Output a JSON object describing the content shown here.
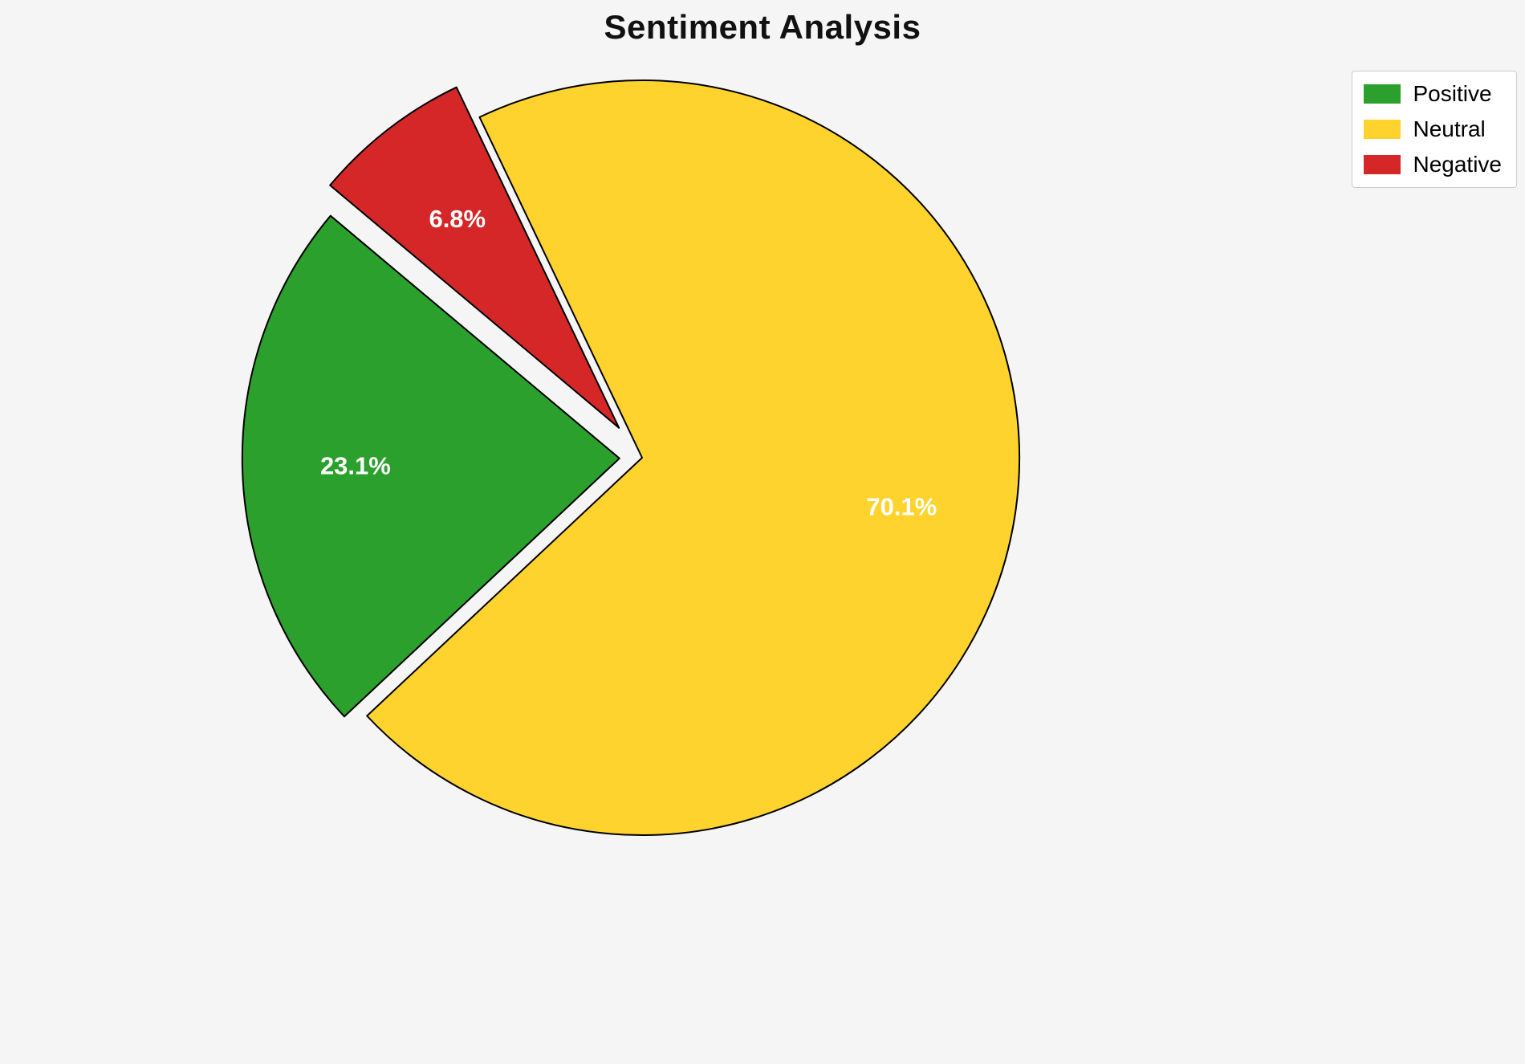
{
  "chart_data": {
    "type": "pie",
    "title": "Sentiment Analysis",
    "categories": [
      "Positive",
      "Neutral",
      "Negative"
    ],
    "values": [
      23.1,
      70.1,
      6.8
    ],
    "pct_labels": [
      "23.1%",
      "70.1%",
      "6.8%"
    ],
    "colors": [
      "#2ca02c",
      "#ffd32e",
      "#d62728"
    ],
    "explode": [
      0.06,
      0,
      0.1
    ],
    "start_angle": 140,
    "direction": "counterclockwise",
    "pct_distance": 0.7,
    "pct_label_color": "#ffffff",
    "edge_color": "#000000",
    "edge_width": 2,
    "background_color": "#f5f5f5",
    "center": [
      800,
      570
    ],
    "radius": 470,
    "legend": {
      "position": "upper right",
      "entries": [
        "Positive",
        "Neutral",
        "Negative"
      ]
    }
  }
}
